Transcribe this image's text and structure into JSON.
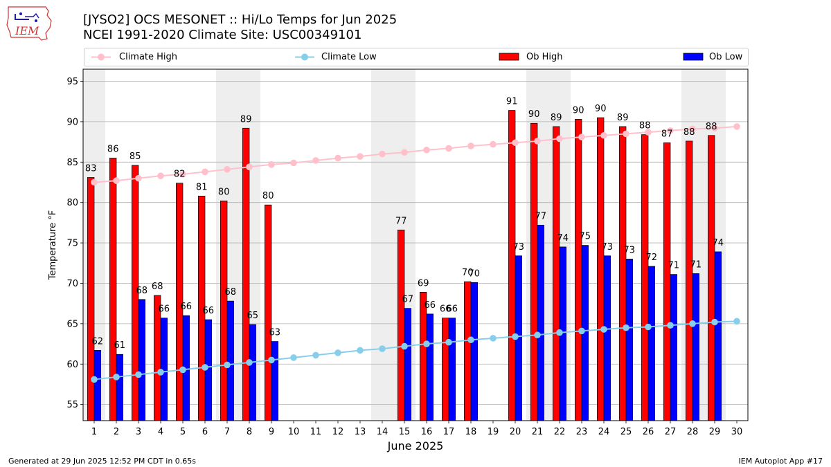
{
  "header": {
    "logo_text": "IEM",
    "title_line1": "[JYSO2] OCS MESONET :: Hi/Lo Temps for Jun 2025",
    "title_line2": "NCEI 1991-2020 Climate Site: USC00349101"
  },
  "legend": {
    "placement": "top, above plot",
    "items": [
      {
        "label": "Climate High",
        "color": "#ffc0cb",
        "kind": "line-marker"
      },
      {
        "label": "Climate Low",
        "color": "#87ceeb",
        "kind": "line-marker"
      },
      {
        "label": "Ob High",
        "color": "#ff0000",
        "kind": "bar"
      },
      {
        "label": "Ob Low",
        "color": "#0000ff",
        "kind": "bar"
      }
    ]
  },
  "footer": {
    "generated": "Generated at 29 Jun 2025 12:52 PM CDT in 0.65s",
    "app": "IEM Autoplot App #17"
  },
  "chart_data": {
    "type": "bar",
    "title": "[JYSO2] OCS MESONET :: Hi/Lo Temps for Jun 2025",
    "subtitle": "NCEI 1991-2020 Climate Site: USC00349101",
    "xlabel": "June 2025",
    "ylabel": "Temperature °F",
    "ylim": [
      53,
      96.5
    ],
    "yticks": [
      55,
      60,
      65,
      70,
      75,
      80,
      85,
      90,
      95
    ],
    "grid": "horizontal",
    "weekend_shading": [
      [
        1
      ],
      [
        7,
        8
      ],
      [
        14,
        15
      ],
      [
        21,
        22
      ],
      [
        28,
        29
      ]
    ],
    "x": [
      1,
      2,
      3,
      4,
      5,
      6,
      7,
      8,
      9,
      10,
      11,
      12,
      13,
      14,
      15,
      16,
      17,
      18,
      19,
      20,
      21,
      22,
      23,
      24,
      25,
      26,
      27,
      28,
      29,
      30
    ],
    "series": [
      {
        "name": "Ob High",
        "type": "bar",
        "color": "#ff0000",
        "values": [
          83.1,
          85.5,
          84.6,
          68.5,
          82.4,
          80.8,
          80.2,
          89.2,
          79.7,
          null,
          null,
          null,
          null,
          null,
          76.6,
          68.9,
          65.7,
          70.2,
          null,
          91.4,
          89.8,
          89.4,
          90.3,
          90.5,
          89.4,
          88.4,
          87.4,
          87.6,
          88.3,
          null
        ],
        "labels": [
          "83",
          "86",
          "85",
          "68",
          "82",
          "81",
          "80",
          "89",
          "80",
          null,
          null,
          null,
          null,
          null,
          "77",
          "69",
          "66",
          "70",
          null,
          "91",
          "90",
          "89",
          "90",
          "90",
          "89",
          "88",
          "87",
          "88",
          "88",
          null
        ]
      },
      {
        "name": "Ob Low",
        "type": "bar",
        "color": "#0000ff",
        "values": [
          61.7,
          61.2,
          68.0,
          65.7,
          66.0,
          65.5,
          67.8,
          64.9,
          62.8,
          null,
          null,
          null,
          null,
          null,
          66.9,
          66.2,
          65.7,
          70.1,
          null,
          73.4,
          77.2,
          74.5,
          74.7,
          73.4,
          73.0,
          72.1,
          71.1,
          71.2,
          73.9,
          null
        ],
        "labels": [
          "62",
          "61",
          "68",
          "66",
          "66",
          "66",
          "68",
          "65",
          "63",
          null,
          null,
          null,
          null,
          null,
          "67",
          "66",
          "66",
          "70",
          null,
          "73",
          "77",
          "74",
          "75",
          "73",
          "73",
          "72",
          "71",
          "71",
          "74",
          null
        ]
      },
      {
        "name": "Climate High",
        "type": "line",
        "color": "#ffc0cb",
        "values": [
          82.5,
          82.7,
          83.0,
          83.3,
          83.5,
          83.8,
          84.1,
          84.4,
          84.7,
          84.9,
          85.2,
          85.5,
          85.7,
          86.0,
          86.2,
          86.5,
          86.7,
          87.0,
          87.2,
          87.4,
          87.6,
          87.9,
          88.1,
          88.3,
          88.5,
          88.7,
          88.9,
          89.1,
          89.2,
          89.4
        ]
      },
      {
        "name": "Climate Low",
        "type": "line",
        "color": "#87ceeb",
        "values": [
          58.1,
          58.4,
          58.7,
          59.0,
          59.3,
          59.6,
          59.9,
          60.2,
          60.5,
          60.8,
          61.1,
          61.4,
          61.7,
          61.9,
          62.2,
          62.5,
          62.7,
          63.0,
          63.2,
          63.4,
          63.6,
          63.9,
          64.1,
          64.3,
          64.5,
          64.6,
          64.8,
          65.0,
          65.2,
          65.3
        ]
      }
    ]
  }
}
